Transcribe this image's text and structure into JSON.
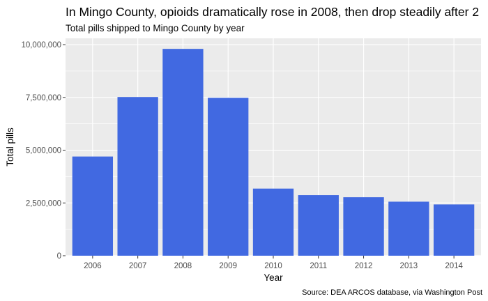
{
  "chart_data": {
    "type": "bar",
    "title": "In Mingo County, opioids dramatically rose in 2008, then drop steadily after 2",
    "subtitle": "Total pills shipped to Mingo County by year",
    "xlabel": "Year",
    "ylabel": "Total pills",
    "caption": "Source: DEA ARCOS database, via Washington Post",
    "categories": [
      "2006",
      "2007",
      "2008",
      "2009",
      "2010",
      "2011",
      "2012",
      "2013",
      "2014"
    ],
    "values": [
      4700000,
      7520000,
      9800000,
      7480000,
      3180000,
      2870000,
      2770000,
      2560000,
      2430000
    ],
    "ylim": [
      0,
      10300000
    ],
    "yticks": [
      0,
      2500000,
      5000000,
      7500000,
      10000000
    ],
    "ytick_labels": [
      "0",
      "2,500,000",
      "5,000,000",
      "7,500,000",
      "10,000,000"
    ],
    "grid": true,
    "bar_color": "#4169e1",
    "panel_color": "#ebebeb",
    "grid_color": "#ffffff"
  }
}
